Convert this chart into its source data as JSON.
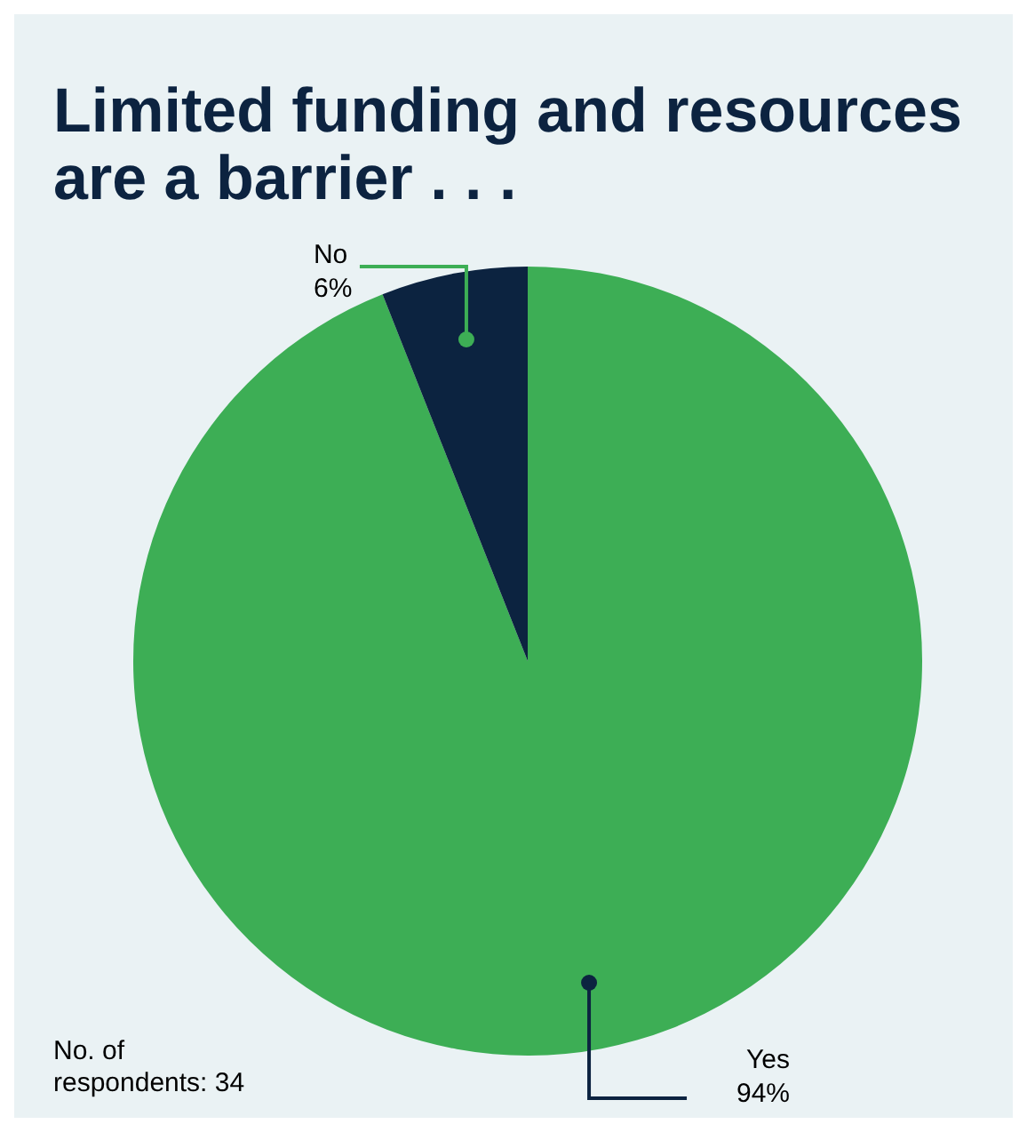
{
  "chart_data": {
    "type": "pie",
    "title": "Limited funding and resources are a barrier . . .",
    "categories": [
      "Yes",
      "No"
    ],
    "values": [
      94,
      6
    ],
    "colors": [
      "#3dae55",
      "#0c2340"
    ],
    "value_labels": [
      "94%",
      "6%"
    ],
    "legend": false,
    "annotations": [
      "No. of respondents: 34"
    ]
  }
}
